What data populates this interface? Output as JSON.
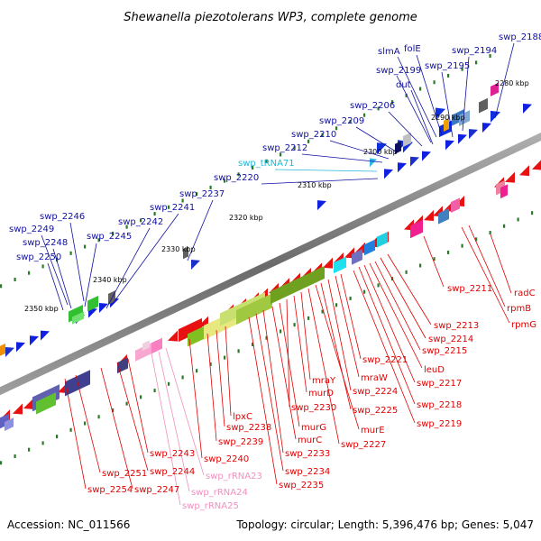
{
  "title": "Shewanella piezotolerans WP3, complete genome",
  "footer": {
    "accession": "Accession: NC_011566",
    "summary": "Topology: circular; Length: 5,396,476 bp; Genes: 5,047"
  },
  "ticks": [
    "2280 kbp",
    "2290 kbp",
    "2300 kbp",
    "2310 kbp",
    "2320 kbp",
    "2330 kbp",
    "2340 kbp",
    "2350 kbp"
  ],
  "colors": {
    "forward_label": "#1010a0",
    "reverse_label": "#e00000",
    "trna_label": "#20b8d8",
    "rrna_label": "#f090c0",
    "backbone": "#7a7a7a",
    "tick": "#2a7a2a"
  },
  "forward_labels": [
    "swp_2188",
    "folE",
    "slmA",
    "swp_2194",
    "swp_2199",
    "swp_2195",
    "dut",
    "swp_2206",
    "swp_2209",
    "swp_2210",
    "swp_2212",
    "swp_tRNA71",
    "swp_2220",
    "swp_2237",
    "swp_2241",
    "swp_2242",
    "swp_2246",
    "swp_2245",
    "swp_2249",
    "swp_2248",
    "swp_2250"
  ],
  "reverse_labels": [
    "radC",
    "rpmB",
    "rpmG",
    "swp_2211",
    "swp_2213",
    "swp_2214",
    "swp_2215",
    "leuD",
    "swp_2217",
    "swp_2218",
    "swp_2219",
    "mraW",
    "swp_2221",
    "swp_2224",
    "swp_2225",
    "murE",
    "swp_2227",
    "mraY",
    "murD",
    "swp_2230",
    "murG",
    "murC",
    "swp_2233",
    "swp_2234",
    "swp_2235",
    "lpxC",
    "swp_2238",
    "swp_2239",
    "swp_2240",
    "swp_rRNA23",
    "swp_rRNA24",
    "swp_rRNA25",
    "swp_2243",
    "swp_2244",
    "swp_2247",
    "swp_2251",
    "swp_2254"
  ]
}
